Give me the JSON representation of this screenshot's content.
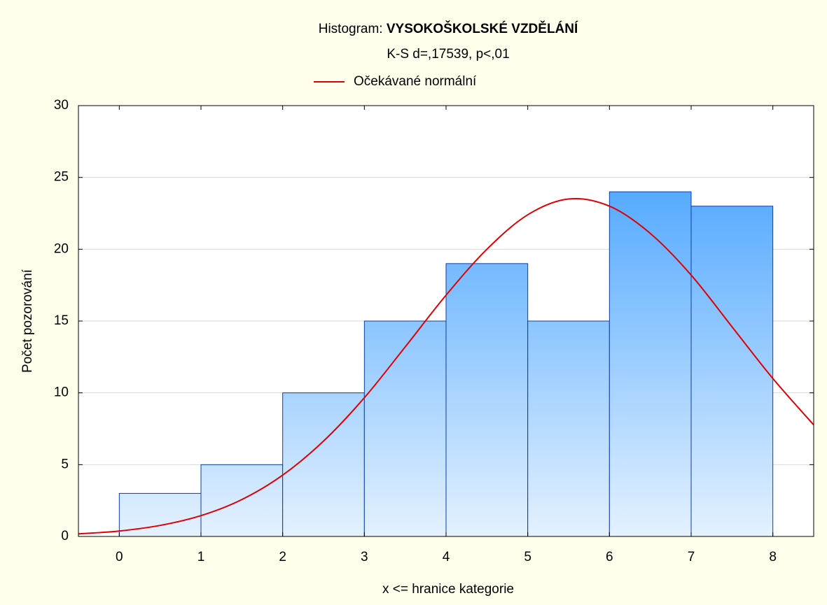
{
  "chart_data": {
    "type": "histogram",
    "title": "Histogram:",
    "title_variable": "VYSOKOŠKOLSKÉ VZDĚLÁNÍ",
    "subtitle": "K-S d=,17539, p<,01",
    "x_label": "x <= hranice kategorie",
    "y_label": "Počet pozorování",
    "bins": [
      0,
      1,
      2,
      3,
      4,
      5,
      6,
      7,
      8
    ],
    "values": [
      3,
      5,
      10,
      15,
      19,
      15,
      24,
      23
    ],
    "color": "#3399ff",
    "edge_color": "#0a3ea8",
    "series": [
      {
        "name": "Očekávané normální",
        "color": "#e00000",
        "x": [
          -0.5,
          0,
          0.5,
          1,
          1.5,
          2,
          2.5,
          3,
          3.5,
          4,
          4.5,
          5,
          5.5,
          6,
          6.5,
          7,
          7.5,
          8,
          8.5
        ],
        "values": [
          0.18,
          0.38,
          0.77,
          1.45,
          2.57,
          4.27,
          6.64,
          9.66,
          13.2,
          16.8,
          20.0,
          22.4,
          23.5,
          23.0,
          21.1,
          18.2,
          14.6,
          11.0,
          7.77
        ]
      }
    ],
    "xlim": [
      -0.5,
      8.5
    ],
    "ylim": [
      0,
      30
    ],
    "xticks": [
      0,
      1,
      2,
      3,
      4,
      5,
      6,
      7,
      8
    ],
    "yticks": [
      0,
      5,
      10,
      15,
      20,
      25,
      30
    ],
    "grid": true,
    "legend": "top"
  }
}
